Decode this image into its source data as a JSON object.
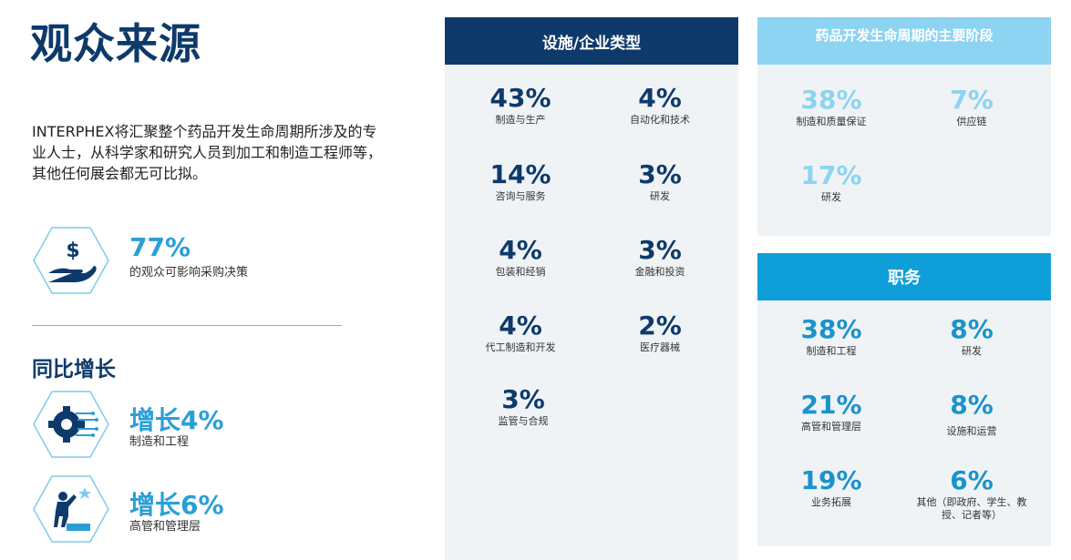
{
  "left": {
    "title": "观众来源",
    "intro": "INTERPHEX将汇聚整个药品开发生命周期所涉及的专业人士，从科学家和研究人员到加工和制造工程师等，其他任何展会都无可比拟。",
    "highlight": {
      "value": "77%",
      "label": "的观众可影响采购决策",
      "icon": "money-hand-icon"
    },
    "growth_title": "同比增长",
    "growth": [
      {
        "value": "增长4%",
        "label": "制造和工程",
        "icon": "gear-circuit-icon"
      },
      {
        "value": "增长6%",
        "label": "高管和管理层",
        "icon": "climbing-person-star-icon"
      }
    ]
  },
  "facility": {
    "header": "设施/企业类型",
    "stats": [
      {
        "value": "43%",
        "label": "制造与生产"
      },
      {
        "value": "4%",
        "label": "自动化和技术"
      },
      {
        "value": "14%",
        "label": "咨询与服务"
      },
      {
        "value": "3%",
        "label": "研发"
      },
      {
        "value": "4%",
        "label": "包装和经销"
      },
      {
        "value": "3%",
        "label": "金融和投资"
      },
      {
        "value": "4%",
        "label": "代工制造和开发"
      },
      {
        "value": "2%",
        "label": "医疗器械"
      },
      {
        "value": "3%",
        "label": "监管与合规"
      }
    ]
  },
  "lifecycle": {
    "header": "药品开发生命周期的主要阶段",
    "stats": [
      {
        "value": "38%",
        "label": "制造和质量保证"
      },
      {
        "value": "7%",
        "label": "供应链"
      },
      {
        "value": "17%",
        "label": "研发"
      }
    ]
  },
  "roles": {
    "header": "职务",
    "stats": [
      {
        "value": "38%",
        "label": "制造和工程"
      },
      {
        "value": "8%",
        "label": "研发"
      },
      {
        "value": "21%",
        "label": "高管和管理层"
      },
      {
        "value": "8%",
        "label": "设施和运营"
      },
      {
        "value": "19%",
        "label": "业务拓展"
      },
      {
        "value": "6%",
        "label": "其他（即政府、学生、教授、记者等）"
      }
    ]
  },
  "colors": {
    "navy": "#0e3a6b",
    "blue_header": "#0f9fd8",
    "light_header": "#8dd3f2",
    "accent_cyan": "#2a9fd6",
    "panel_bg": "#f0f3f5"
  }
}
